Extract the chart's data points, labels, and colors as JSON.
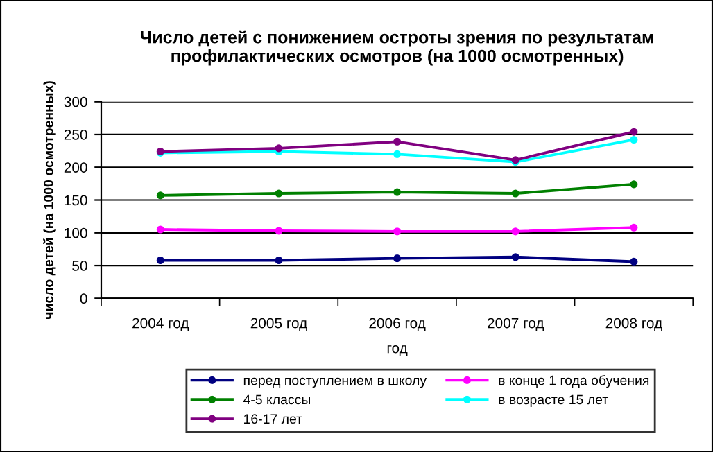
{
  "chart_data": {
    "type": "line",
    "title": "Число детей с понижением остроты зрения по результатам профилактических осмотров (на 1000 осмотренных)",
    "xlabel": "год",
    "ylabel": "число детей (на 1000 осмотренных)",
    "categories": [
      "2004 год",
      "2005 год",
      "2006 год",
      "2007 год",
      "2008 год"
    ],
    "series": [
      {
        "name": "перед поступлением в школу",
        "color": "#000080",
        "values": [
          58,
          58,
          61,
          63,
          56
        ]
      },
      {
        "name": "в конце 1 года обучения",
        "color": "#ff00ff",
        "values": [
          105,
          103,
          102,
          102,
          108
        ]
      },
      {
        "name": "4-5 классы",
        "color": "#008000",
        "values": [
          157,
          160,
          162,
          160,
          174
        ]
      },
      {
        "name": "в возрасте 15 лет",
        "color": "#00ffff",
        "values": [
          222,
          224,
          220,
          208,
          242
        ]
      },
      {
        "name": "16-17 лет",
        "color": "#800080",
        "values": [
          224,
          229,
          239,
          211,
          254
        ]
      }
    ],
    "ylim": [
      0,
      300
    ],
    "yticks": [
      0,
      50,
      100,
      150,
      200,
      250,
      300
    ],
    "grid": "y",
    "legend": "bottom",
    "marker": "circle",
    "line_style": "solid"
  }
}
